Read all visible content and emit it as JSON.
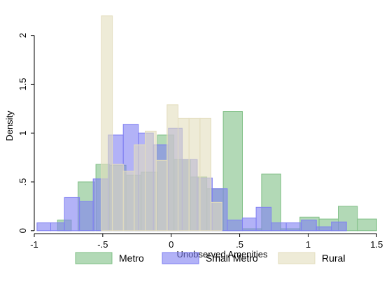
{
  "chart_data": {
    "type": "bar",
    "subtype": "overlaid-histogram",
    "title": "",
    "xlabel": "Unobserved Amenities",
    "ylabel": "Density",
    "xlim": [
      -1.0,
      1.57
    ],
    "ylim": [
      -0.03,
      2.32
    ],
    "x_ticks": [
      -1,
      -0.5,
      0,
      0.5,
      1,
      1.5
    ],
    "x_tick_labels": [
      "-1",
      "-.5",
      "0",
      ".5",
      "1",
      "1.5"
    ],
    "y_ticks": [
      0,
      0.5,
      1,
      1.5,
      2
    ],
    "y_tick_labels": [
      "0",
      ".5",
      "1",
      "1.5",
      "2"
    ],
    "grid": false,
    "legend_position": "bottom",
    "series": [
      {
        "name": "Metro",
        "color": "#7fbf85",
        "bins": [
          {
            "x0": -0.83,
            "x1": -0.73,
            "y": 0.11
          },
          {
            "x0": -0.68,
            "x1": -0.56,
            "y": 0.5
          },
          {
            "x0": -0.55,
            "x1": -0.45,
            "y": 0.68
          },
          {
            "x0": -0.45,
            "x1": -0.33,
            "y": 0.67
          },
          {
            "x0": -0.33,
            "x1": -0.22,
            "y": 0.57
          },
          {
            "x0": -0.22,
            "x1": -0.1,
            "y": 0.6
          },
          {
            "x0": -0.1,
            "x1": 0.02,
            "y": 0.98
          },
          {
            "x0": 0.02,
            "x1": 0.14,
            "y": 0.73
          },
          {
            "x0": 0.14,
            "x1": 0.26,
            "y": 0.55
          },
          {
            "x0": 0.26,
            "x1": 0.38,
            "y": 0.43
          },
          {
            "x0": 0.38,
            "x1": 0.52,
            "y": 1.22
          },
          {
            "x0": 0.52,
            "x1": 0.66,
            "y": 0.02
          },
          {
            "x0": 0.66,
            "x1": 0.8,
            "y": 0.58
          },
          {
            "x0": 0.8,
            "x1": 0.94,
            "y": 0.02
          },
          {
            "x0": 0.94,
            "x1": 1.08,
            "y": 0.14
          },
          {
            "x0": 1.08,
            "x1": 1.22,
            "y": 0.12
          },
          {
            "x0": 1.22,
            "x1": 1.36,
            "y": 0.25
          },
          {
            "x0": 1.36,
            "x1": 1.5,
            "y": 0.12
          }
        ]
      },
      {
        "name": "Small Metro",
        "color": "#7f7ff2",
        "bins": [
          {
            "x0": -0.98,
            "x1": -0.88,
            "y": 0.08
          },
          {
            "x0": -0.88,
            "x1": -0.78,
            "y": 0.08
          },
          {
            "x0": -0.78,
            "x1": -0.67,
            "y": 0.34
          },
          {
            "x0": -0.67,
            "x1": -0.57,
            "y": 0.3
          },
          {
            "x0": -0.57,
            "x1": -0.46,
            "y": 0.53
          },
          {
            "x0": -0.46,
            "x1": -0.35,
            "y": 0.98
          },
          {
            "x0": -0.35,
            "x1": -0.24,
            "y": 1.09
          },
          {
            "x0": -0.24,
            "x1": -0.13,
            "y": 1.0
          },
          {
            "x0": -0.13,
            "x1": -0.02,
            "y": 0.88
          },
          {
            "x0": -0.02,
            "x1": 0.08,
            "y": 1.05
          },
          {
            "x0": 0.08,
            "x1": 0.19,
            "y": 0.73
          },
          {
            "x0": 0.19,
            "x1": 0.3,
            "y": 0.54
          },
          {
            "x0": 0.3,
            "x1": 0.41,
            "y": 0.43
          },
          {
            "x0": 0.41,
            "x1": 0.52,
            "y": 0.11
          },
          {
            "x0": 0.52,
            "x1": 0.62,
            "y": 0.13
          },
          {
            "x0": 0.62,
            "x1": 0.73,
            "y": 0.24
          },
          {
            "x0": 0.73,
            "x1": 0.84,
            "y": 0.08
          },
          {
            "x0": 0.84,
            "x1": 0.95,
            "y": 0.08
          },
          {
            "x0": 0.95,
            "x1": 1.06,
            "y": 0.11
          },
          {
            "x0": 1.06,
            "x1": 1.17,
            "y": 0.04
          },
          {
            "x0": 1.17,
            "x1": 1.28,
            "y": 0.09
          }
        ]
      },
      {
        "name": "Rural",
        "color": "#e3ddbd",
        "bins": [
          {
            "x0": -0.51,
            "x1": -0.43,
            "y": 2.2
          },
          {
            "x0": -0.43,
            "x1": -0.35,
            "y": 0.68
          },
          {
            "x0": -0.35,
            "x1": -0.27,
            "y": 0.61
          },
          {
            "x0": -0.27,
            "x1": -0.19,
            "y": 0.88
          },
          {
            "x0": -0.19,
            "x1": -0.11,
            "y": 1.02
          },
          {
            "x0": -0.11,
            "x1": -0.03,
            "y": 0.72
          },
          {
            "x0": -0.03,
            "x1": 0.05,
            "y": 1.29
          },
          {
            "x0": 0.05,
            "x1": 0.13,
            "y": 1.15
          },
          {
            "x0": 0.13,
            "x1": 0.21,
            "y": 1.15
          },
          {
            "x0": 0.21,
            "x1": 0.29,
            "y": 1.15
          },
          {
            "x0": 0.29,
            "x1": 0.37,
            "y": 0.29
          }
        ]
      }
    ]
  }
}
